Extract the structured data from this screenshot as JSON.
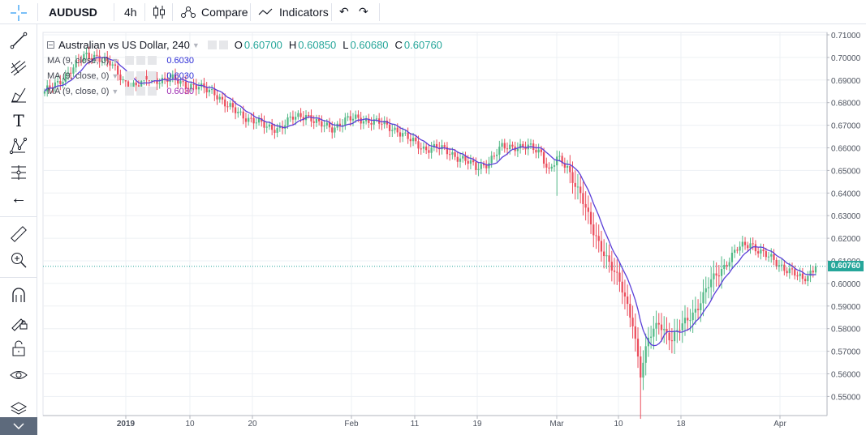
{
  "toolbar": {
    "symbol": "AUDUSD",
    "interval": "4h",
    "compare_label": "Compare",
    "indicators_label": "Indicators"
  },
  "legend": {
    "title": "Australian vs US Dollar, 240",
    "open_label": "O",
    "open": "0.60700",
    "high_label": "H",
    "high": "0.60850",
    "low_label": "L",
    "low": "0.60680",
    "close_label": "C",
    "close": "0.60760",
    "studies": [
      {
        "label": "MA (9, close, 0)",
        "value": "0.6030",
        "color": "#2b2bd6"
      },
      {
        "label": "MA (9, close, 0)",
        "value": "0.6030",
        "color": "#2b2bd6"
      },
      {
        "label": "MA (9, close, 0)",
        "value": "0.6030",
        "color": "#9c27b0"
      }
    ]
  },
  "colors": {
    "up": "#53b987",
    "down": "#eb4d5c",
    "ma": "#5b3fd8",
    "grid": "#edf0f4",
    "last_price": "#26a69a"
  },
  "chart_data": {
    "type": "candlestick",
    "y_ticks": [
      "0.71000",
      "0.70000",
      "0.69000",
      "0.68000",
      "0.67000",
      "0.66000",
      "0.65000",
      "0.64000",
      "0.63000",
      "0.62000",
      "0.61000",
      "0.60000",
      "0.59000",
      "0.58000",
      "0.57000",
      "0.56000",
      "0.55000"
    ],
    "ylim": [
      0.547,
      0.7115
    ],
    "x_ticks": [
      "2019",
      "10",
      "20",
      "Feb",
      "11",
      "19",
      "Mar",
      "10",
      "18",
      "Apr"
    ],
    "last_price": "0.60760",
    "close_path": [
      {
        "i": 0,
        "c": 0.685
      },
      {
        "i": 5,
        "c": 0.688
      },
      {
        "i": 10,
        "c": 0.695
      },
      {
        "i": 15,
        "c": 0.7
      },
      {
        "i": 20,
        "c": 0.701
      },
      {
        "i": 25,
        "c": 0.697
      },
      {
        "i": 30,
        "c": 0.69
      },
      {
        "i": 35,
        "c": 0.687
      },
      {
        "i": 40,
        "c": 0.691
      },
      {
        "i": 45,
        "c": 0.69
      },
      {
        "i": 50,
        "c": 0.69
      },
      {
        "i": 55,
        "c": 0.688
      },
      {
        "i": 60,
        "c": 0.686
      },
      {
        "i": 65,
        "c": 0.685
      },
      {
        "i": 70,
        "c": 0.678
      },
      {
        "i": 75,
        "c": 0.675
      },
      {
        "i": 80,
        "c": 0.672
      },
      {
        "i": 85,
        "c": 0.669
      },
      {
        "i": 90,
        "c": 0.669
      },
      {
        "i": 95,
        "c": 0.673
      },
      {
        "i": 100,
        "c": 0.675
      },
      {
        "i": 105,
        "c": 0.67
      },
      {
        "i": 110,
        "c": 0.669
      },
      {
        "i": 115,
        "c": 0.672
      },
      {
        "i": 120,
        "c": 0.673
      },
      {
        "i": 125,
        "c": 0.672
      },
      {
        "i": 130,
        "c": 0.67
      },
      {
        "i": 135,
        "c": 0.668
      },
      {
        "i": 140,
        "c": 0.663
      },
      {
        "i": 145,
        "c": 0.66
      },
      {
        "i": 150,
        "c": 0.66
      },
      {
        "i": 155,
        "c": 0.658
      },
      {
        "i": 160,
        "c": 0.655
      },
      {
        "i": 165,
        "c": 0.651
      },
      {
        "i": 170,
        "c": 0.654
      },
      {
        "i": 175,
        "c": 0.66
      },
      {
        "i": 180,
        "c": 0.661
      },
      {
        "i": 185,
        "c": 0.66
      },
      {
        "i": 190,
        "c": 0.658
      },
      {
        "i": 193,
        "c": 0.65
      },
      {
        "i": 196,
        "c": 0.655
      },
      {
        "i": 200,
        "c": 0.651
      },
      {
        "i": 205,
        "c": 0.64
      },
      {
        "i": 210,
        "c": 0.622
      },
      {
        "i": 215,
        "c": 0.612
      },
      {
        "i": 220,
        "c": 0.6
      },
      {
        "i": 225,
        "c": 0.583
      },
      {
        "i": 228,
        "c": 0.56
      },
      {
        "i": 231,
        "c": 0.575
      },
      {
        "i": 235,
        "c": 0.583
      },
      {
        "i": 240,
        "c": 0.575
      },
      {
        "i": 245,
        "c": 0.583
      },
      {
        "i": 250,
        "c": 0.59
      },
      {
        "i": 255,
        "c": 0.601
      },
      {
        "i": 260,
        "c": 0.608
      },
      {
        "i": 265,
        "c": 0.615
      },
      {
        "i": 270,
        "c": 0.618
      },
      {
        "i": 275,
        "c": 0.613
      },
      {
        "i": 280,
        "c": 0.609
      },
      {
        "i": 285,
        "c": 0.606
      },
      {
        "i": 290,
        "c": 0.601
      },
      {
        "i": 295,
        "c": 0.6076
      }
    ]
  }
}
